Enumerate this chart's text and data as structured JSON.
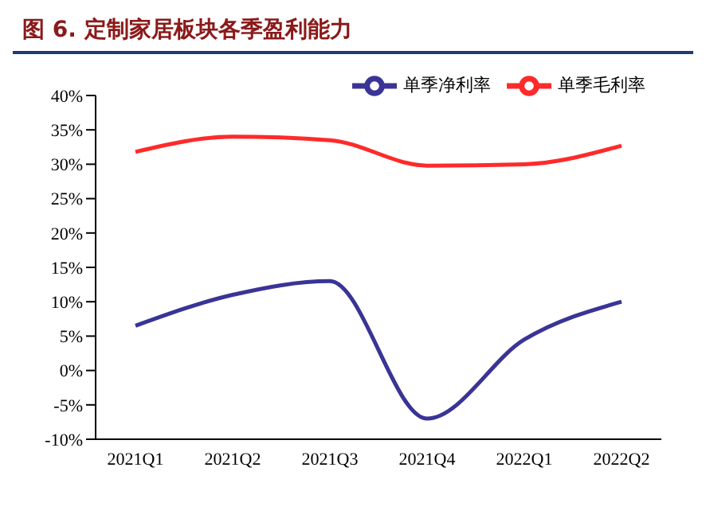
{
  "chart_data": {
    "type": "line",
    "title": "图 6. 定制家居板块各季盈利能力",
    "categories": [
      "2021Q1",
      "2021Q2",
      "2021Q3",
      "2021Q4",
      "2022Q1",
      "2022Q2"
    ],
    "series": [
      {
        "name": "单季毛利率",
        "color": "#ff2a2a",
        "values": [
          31.8,
          34,
          33.5,
          29.8,
          30,
          32.7
        ]
      },
      {
        "name": "单季净利率",
        "color": "#3a3496",
        "values": [
          6.5,
          11,
          13,
          -7,
          4.5,
          10
        ]
      }
    ],
    "ylim": [
      -10,
      40
    ],
    "yticks": [
      {
        "value": -10,
        "label": "-10%"
      },
      {
        "value": -5,
        "label": "-5%"
      },
      {
        "value": 0,
        "label": "0%"
      },
      {
        "value": 5,
        "label": "5%"
      },
      {
        "value": 10,
        "label": "10%"
      },
      {
        "value": 15,
        "label": "15%"
      },
      {
        "value": 20,
        "label": "20%"
      },
      {
        "value": 25,
        "label": "25%"
      },
      {
        "value": 30,
        "label": "30%"
      },
      {
        "value": 35,
        "label": "35%"
      },
      {
        "value": 40,
        "label": "40%"
      }
    ],
    "grid": false,
    "legend": "top right",
    "marker": "none",
    "line_style": "solid"
  }
}
